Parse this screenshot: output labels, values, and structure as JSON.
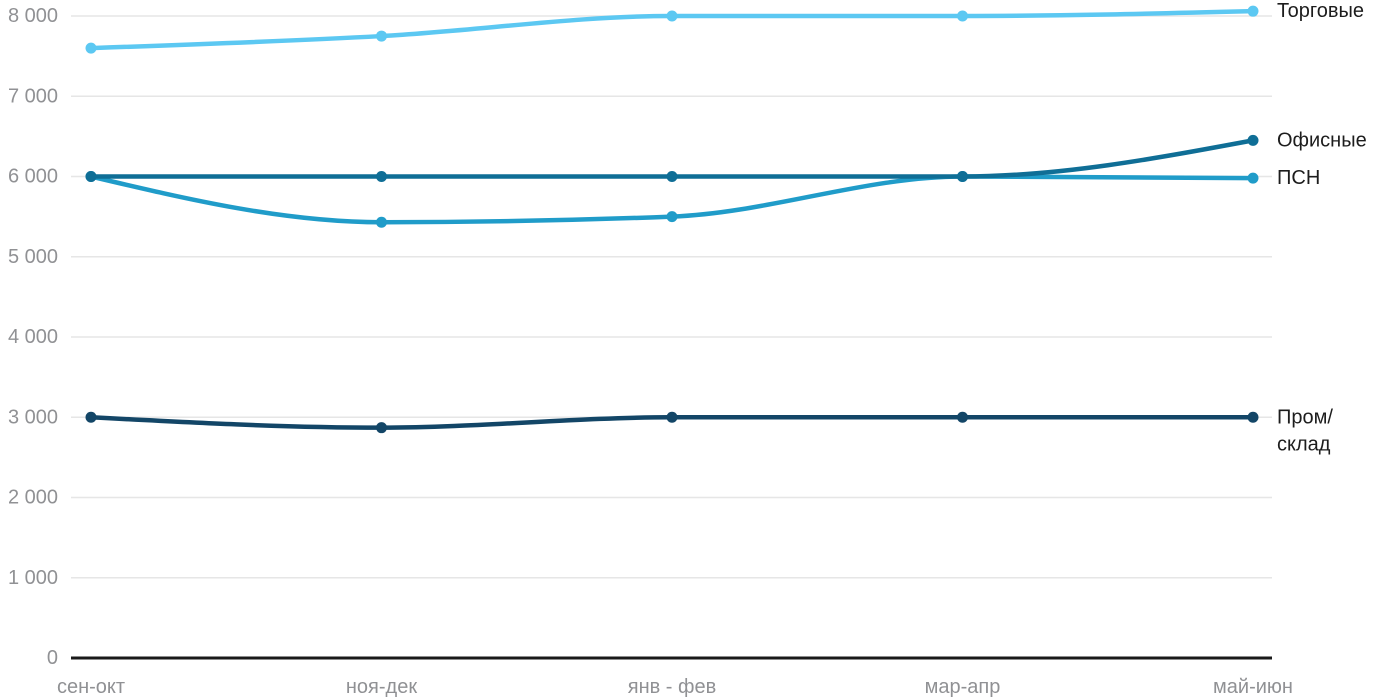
{
  "chart_data": {
    "type": "line",
    "title": "",
    "categories": [
      "сен-окт",
      "ноя-дек",
      "янв - фев",
      "мар-апр",
      "май-июн"
    ],
    "series": [
      {
        "name": "Торговые",
        "label_lines": [
          "Торговые"
        ],
        "color": "#5CC8F2",
        "values": [
          7600,
          7750,
          8000,
          8000,
          8060
        ]
      },
      {
        "name": "Офисные",
        "label_lines": [
          "Офисные"
        ],
        "color": "#0F6E96",
        "values": [
          6000,
          6000,
          6000,
          6000,
          6450
        ]
      },
      {
        "name": "ПСН",
        "label_lines": [
          "ПСН"
        ],
        "color": "#209CC9",
        "values": [
          6000,
          5430,
          5500,
          6000,
          5980
        ]
      },
      {
        "name": "Пром/склад",
        "label_lines": [
          "Пром/",
          "склад"
        ],
        "color": "#134667",
        "values": [
          3000,
          2870,
          3000,
          3000,
          3000
        ]
      }
    ],
    "y_axis": {
      "min": 0,
      "max": 8000,
      "step": 1000,
      "tick_labels": [
        "0",
        "1 000",
        "2 000",
        "3 000",
        "4 000",
        "5 000",
        "6 000",
        "7 000",
        "8 000"
      ]
    },
    "x_axis": {
      "tick_labels": [
        "сен-окт",
        "ноя-дек",
        "янв - фев",
        "мар-апр",
        "май-июн"
      ]
    },
    "grid": true,
    "legend_position": "right-end-of-lines",
    "curve": "smooth-monotone"
  },
  "colors": {
    "background": "#ffffff",
    "gridline": "#e6e6e6",
    "axis_line": "#1a1a1a",
    "tick_text": "#909194",
    "series_label_text": "#1d1d1d"
  }
}
